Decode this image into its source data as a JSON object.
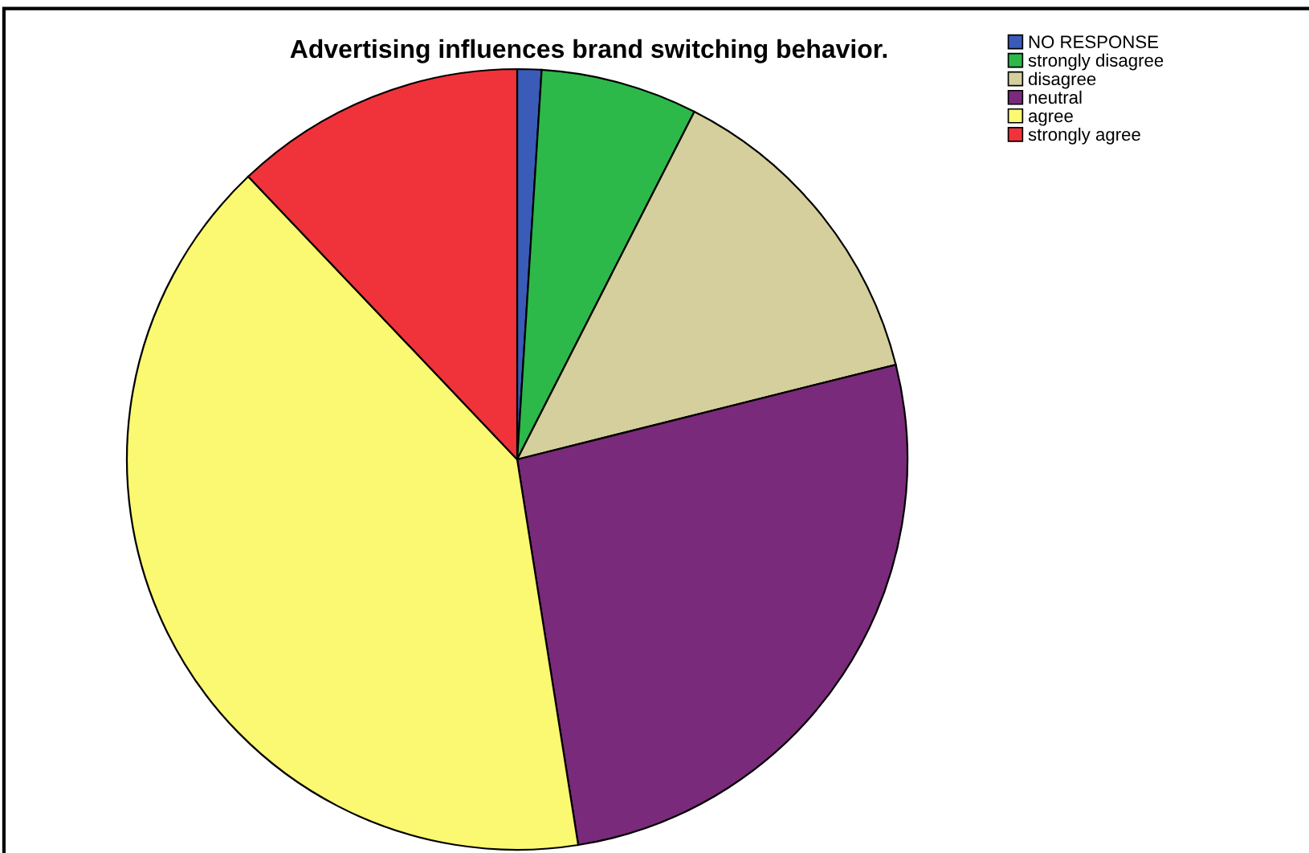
{
  "chart_data": {
    "type": "pie",
    "title": "Advertising influences brand switching behavior.",
    "categories": [
      "NO RESPONSE",
      "strongly disagree",
      "disagree",
      "neutral",
      "agree",
      "strongly agree"
    ],
    "values": [
      1.0,
      6.5,
      13.6,
      26.4,
      40.4,
      12.1
    ],
    "colors": [
      "#3a5bb8",
      "#2db84a",
      "#d4cf9c",
      "#7a2a7a",
      "#fbf872",
      "#f0333a"
    ],
    "legend": "top right"
  }
}
